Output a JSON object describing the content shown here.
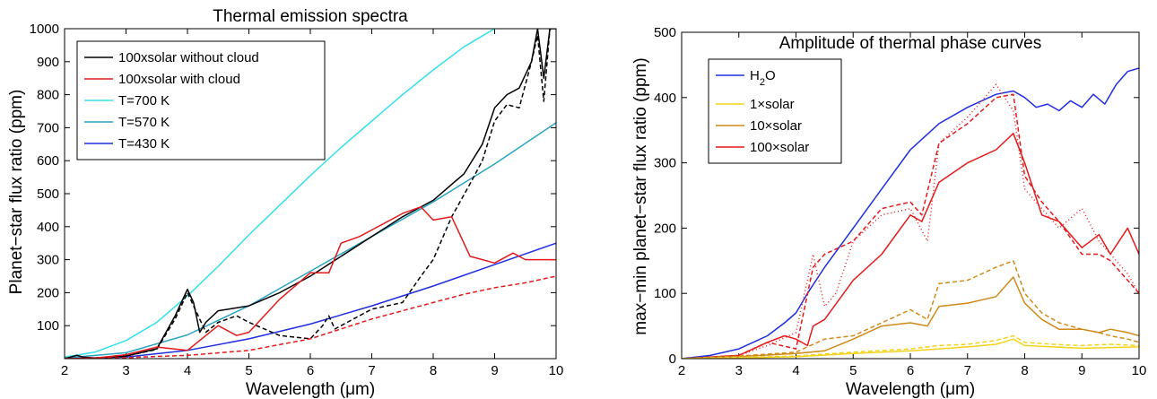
{
  "chart_data": [
    {
      "type": "line",
      "title": "Thermal emission spectra",
      "xlabel": "Wavelength (μm)",
      "ylabel": "Planet−star flux ratio (ppm)",
      "xlim": [
        2,
        10
      ],
      "ylim": [
        0,
        1000
      ],
      "xticks": [
        2,
        3,
        4,
        5,
        6,
        7,
        8,
        9,
        10
      ],
      "yticks": [
        100,
        200,
        300,
        400,
        500,
        600,
        700,
        800,
        900,
        1000
      ],
      "legend_position": "top-left",
      "legend": [
        {
          "label": "100xsolar without cloud",
          "color": "#000000"
        },
        {
          "label": "100xsolar with cloud",
          "color": "#e31a1c"
        },
        {
          "label": "T=700 K",
          "color": "#33e0e8"
        },
        {
          "label": "T=570 K",
          "color": "#2aa4c2"
        },
        {
          "label": "T=430 K",
          "color": "#1f2ee0"
        }
      ],
      "series": [
        {
          "name": "T=700 K",
          "color": "#33e0e8",
          "dash": "solid",
          "x": [
            2,
            2.5,
            3,
            3.5,
            4,
            4.5,
            5,
            5.5,
            6,
            6.5,
            7,
            7.5,
            8,
            8.5,
            9,
            9.2
          ],
          "y": [
            5,
            20,
            55,
            110,
            190,
            280,
            375,
            465,
            555,
            640,
            720,
            800,
            875,
            945,
            1000,
            1020
          ]
        },
        {
          "name": "T=570 K",
          "color": "#2aa4c2",
          "dash": "solid",
          "x": [
            2,
            3,
            4,
            5,
            6,
            7,
            8,
            9,
            10
          ],
          "y": [
            2,
            18,
            72,
            160,
            265,
            370,
            475,
            590,
            715
          ]
        },
        {
          "name": "T=430 K",
          "color": "#1f2ee0",
          "dash": "solid",
          "x": [
            2,
            3,
            4,
            5,
            6,
            7,
            8,
            9,
            10
          ],
          "y": [
            0,
            5,
            25,
            60,
            105,
            160,
            220,
            285,
            350
          ]
        },
        {
          "name": "100xsolar without cloud",
          "color": "#000000",
          "dash": "solid",
          "x": [
            2,
            2.1,
            2.2,
            2.3,
            2.5,
            3,
            3.5,
            3.8,
            4,
            4.1,
            4.2,
            4.3,
            4.5,
            5,
            5.5,
            6,
            6.5,
            7,
            7.5,
            8,
            8.5,
            8.8,
            9,
            9.2,
            9.4,
            9.6,
            9.7,
            9.8,
            9.9,
            10
          ],
          "y": [
            0,
            5,
            10,
            5,
            2,
            8,
            30,
            130,
            210,
            170,
            80,
            110,
            145,
            160,
            200,
            250,
            310,
            370,
            430,
            480,
            560,
            650,
            760,
            800,
            820,
            900,
            1000,
            850,
            1000,
            1000
          ]
        },
        {
          "name": "100xsolar without cloud (dashed)",
          "color": "#000000",
          "dash": "dashed",
          "x": [
            2,
            2.5,
            3,
            3.5,
            3.8,
            4,
            4.1,
            4.3,
            4.5,
            4.8,
            5,
            5.5,
            6,
            6.2,
            6.3,
            6.4,
            6.6,
            7,
            7.5,
            7.8,
            8,
            8.3,
            8.6,
            8.8,
            9,
            9.2,
            9.4,
            9.6,
            9.7,
            9.8,
            9.9,
            10
          ],
          "y": [
            0,
            2,
            8,
            28,
            120,
            200,
            160,
            80,
            110,
            130,
            110,
            70,
            60,
            100,
            130,
            90,
            110,
            150,
            170,
            250,
            300,
            430,
            530,
            600,
            720,
            770,
            760,
            900,
            980,
            780,
            1000,
            1000
          ]
        },
        {
          "name": "100xsolar with cloud",
          "color": "#e31a1c",
          "dash": "solid",
          "x": [
            2,
            2.5,
            3,
            3.5,
            4,
            4.3,
            4.5,
            4.8,
            5,
            5.5,
            6,
            6.3,
            6.5,
            6.8,
            7,
            7.5,
            7.8,
            8,
            8.3,
            8.6,
            9,
            9.3,
            9.5,
            9.8,
            10
          ],
          "y": [
            0,
            2,
            12,
            35,
            25,
            70,
            100,
            70,
            80,
            180,
            260,
            260,
            350,
            370,
            390,
            440,
            460,
            420,
            430,
            310,
            290,
            320,
            300,
            300,
            300
          ]
        },
        {
          "name": "100xsolar with cloud (dashed)",
          "color": "#e31a1c",
          "dash": "dashed",
          "x": [
            2,
            3,
            4,
            5,
            6,
            7,
            8,
            8.5,
            9,
            9.5,
            10
          ],
          "y": [
            0,
            3,
            10,
            25,
            60,
            120,
            170,
            195,
            215,
            230,
            250
          ]
        }
      ]
    },
    {
      "type": "line",
      "title": "Amplitude of thermal phase curves",
      "xlabel": "Wavelength (μm)",
      "ylabel": "max−min planet−star flux ratio (ppm)",
      "xlim": [
        2,
        10
      ],
      "ylim": [
        0,
        500
      ],
      "xticks": [
        2,
        3,
        4,
        5,
        6,
        7,
        8,
        9,
        10
      ],
      "yticks": [
        0,
        100,
        200,
        300,
        400,
        500
      ],
      "legend_position": "top-left",
      "legend": [
        {
          "label": "H",
          "sub": "2",
          "suffix": "O",
          "color": "#1f2ee0"
        },
        {
          "label": "1×solar",
          "color": "#f2d21b"
        },
        {
          "label": "10×solar",
          "color": "#d08a1a"
        },
        {
          "label": "100×solar",
          "color": "#e31a1c"
        }
      ],
      "series": [
        {
          "name": "H2O",
          "color": "#1f2ee0",
          "dash": "solid",
          "x": [
            2,
            2.5,
            3,
            3.5,
            3.8,
            4,
            4.2,
            4.5,
            5,
            5.5,
            6,
            6.5,
            7,
            7.5,
            7.8,
            8,
            8.2,
            8.4,
            8.6,
            8.8,
            9,
            9.2,
            9.4,
            9.6,
            9.8,
            10
          ],
          "y": [
            0,
            5,
            15,
            35,
            55,
            70,
            100,
            140,
            200,
            260,
            320,
            360,
            385,
            405,
            410,
            400,
            385,
            390,
            380,
            395,
            385,
            405,
            390,
            420,
            440,
            445
          ]
        },
        {
          "name": "100×solar",
          "color": "#e31a1c",
          "dash": "solid",
          "x": [
            2,
            3,
            3.5,
            3.8,
            4,
            4.2,
            4.3,
            4.5,
            5,
            5.5,
            6,
            6.2,
            6.5,
            7,
            7.5,
            7.8,
            8,
            8.3,
            8.6,
            9,
            9.3,
            9.5,
            9.8,
            10
          ],
          "y": [
            0,
            5,
            25,
            35,
            30,
            20,
            50,
            60,
            120,
            160,
            220,
            210,
            270,
            300,
            320,
            345,
            300,
            220,
            210,
            170,
            190,
            160,
            200,
            160
          ]
        },
        {
          "name": "100×solar (dashed)",
          "color": "#e31a1c",
          "dash": "dashed",
          "x": [
            2,
            3,
            3.5,
            4,
            4.3,
            4.5,
            5,
            5.5,
            6,
            6.2,
            6.5,
            7,
            7.5,
            7.8,
            8,
            8.3,
            8.6,
            9,
            9.3,
            9.5,
            9.8,
            10
          ],
          "y": [
            0,
            5,
            25,
            15,
            140,
            160,
            180,
            230,
            240,
            220,
            330,
            360,
            400,
            405,
            280,
            240,
            210,
            160,
            160,
            150,
            120,
            100
          ]
        },
        {
          "name": "100×solar (dotted)",
          "color": "#e31a1c",
          "dash": "dotted",
          "x": [
            2,
            3,
            3.5,
            4,
            4.3,
            4.5,
            4.7,
            5,
            5.5,
            6,
            6.3,
            6.5,
            7,
            7.5,
            7.8,
            8,
            8.3,
            8.6,
            9,
            9.3,
            9.5,
            9.8,
            10
          ],
          "y": [
            0,
            5,
            20,
            40,
            160,
            80,
            100,
            180,
            220,
            230,
            180,
            330,
            370,
            420,
            380,
            260,
            230,
            200,
            230,
            180,
            160,
            130,
            100
          ]
        },
        {
          "name": "10×solar",
          "color": "#d08a1a",
          "dash": "solid",
          "x": [
            2,
            3,
            4,
            4.5,
            5,
            5.5,
            6,
            6.3,
            6.5,
            7,
            7.5,
            7.8,
            8,
            8.3,
            8.6,
            9,
            9.3,
            9.5,
            9.8,
            10
          ],
          "y": [
            0,
            3,
            8,
            12,
            30,
            50,
            55,
            50,
            80,
            85,
            95,
            125,
            85,
            60,
            45,
            45,
            40,
            45,
            40,
            35
          ]
        },
        {
          "name": "10×solar (dashed)",
          "color": "#d08a1a",
          "dash": "dashed",
          "x": [
            2,
            3,
            4,
            4.5,
            5,
            5.5,
            6,
            6.3,
            6.5,
            7,
            7.5,
            7.8,
            8,
            8.3,
            8.6,
            9,
            9.3,
            9.5,
            9.8,
            10
          ],
          "y": [
            0,
            4,
            10,
            30,
            35,
            55,
            75,
            60,
            115,
            120,
            140,
            150,
            100,
            70,
            55,
            45,
            40,
            35,
            30,
            25
          ]
        },
        {
          "name": "1×solar",
          "color": "#f2d21b",
          "dash": "solid",
          "x": [
            2,
            3,
            4,
            5,
            6,
            6.5,
            7,
            7.5,
            7.8,
            8,
            8.5,
            9,
            9.5,
            10
          ],
          "y": [
            0,
            1,
            3,
            8,
            12,
            15,
            18,
            22,
            30,
            20,
            18,
            16,
            17,
            18
          ]
        },
        {
          "name": "1×solar (dashed)",
          "color": "#f2d21b",
          "dash": "dashed",
          "x": [
            2,
            3,
            4,
            5,
            6,
            6.5,
            7,
            7.5,
            7.8,
            8,
            8.5,
            9,
            9.5,
            10
          ],
          "y": [
            0,
            2,
            4,
            10,
            15,
            20,
            22,
            28,
            35,
            25,
            22,
            20,
            22,
            20
          ]
        }
      ]
    }
  ]
}
